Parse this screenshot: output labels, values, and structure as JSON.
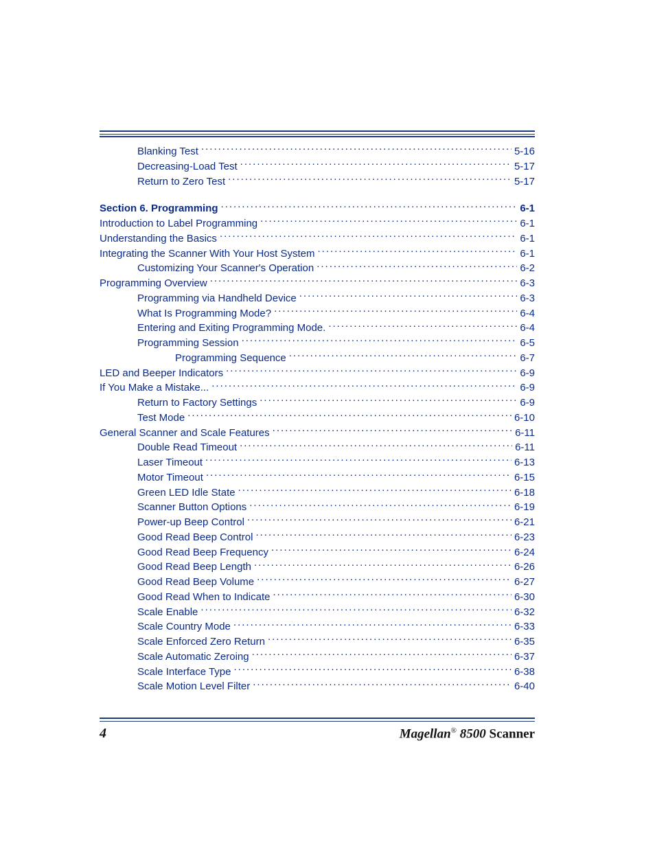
{
  "colors": {
    "link": "#0a2a88",
    "rule": "#1a3a7a",
    "text": "#111111",
    "background": "#ffffff"
  },
  "typography": {
    "body_font": "Arial",
    "body_size_pt": 11,
    "footer_font": "Georgia",
    "footer_size_pt": 14
  },
  "toc": {
    "entries": [
      {
        "label": "Blanking Test",
        "page": "5-16",
        "indent": 1,
        "bold": false
      },
      {
        "label": "Decreasing-Load Test",
        "page": "5-17",
        "indent": 1,
        "bold": false
      },
      {
        "label": "Return to Zero Test",
        "page": "5-17",
        "indent": 1,
        "bold": false
      },
      {
        "gap": true
      },
      {
        "label": "Section 6. Programming",
        "page": "6-1",
        "indent": 0,
        "bold": true
      },
      {
        "label": "Introduction to Label Programming",
        "page": "6-1",
        "indent": 0,
        "bold": false
      },
      {
        "label": "Understanding the Basics",
        "page": "6-1",
        "indent": 0,
        "bold": false
      },
      {
        "label": "Integrating the Scanner With Your Host System",
        "page": "6-1",
        "indent": 0,
        "bold": false
      },
      {
        "label": "Customizing Your Scanner's Operation",
        "page": "6-2",
        "indent": 1,
        "bold": false
      },
      {
        "label": "Programming Overview",
        "page": "6-3",
        "indent": 0,
        "bold": false
      },
      {
        "label": "Programming via Handheld Device",
        "page": "6-3",
        "indent": 1,
        "bold": false
      },
      {
        "label": "What Is Programming Mode?",
        "page": "6-4",
        "indent": 1,
        "bold": false
      },
      {
        "label": "Entering and Exiting Programming Mode.",
        "page": "6-4",
        "indent": 1,
        "bold": false
      },
      {
        "label": "Programming Session",
        "page": "6-5",
        "indent": 1,
        "bold": false
      },
      {
        "label": "Programming Sequence",
        "page": "6-7",
        "indent": 2,
        "bold": false
      },
      {
        "label": "LED and Beeper Indicators",
        "page": "6-9",
        "indent": 0,
        "bold": false
      },
      {
        "label": "If You Make a Mistake...",
        "page": "6-9",
        "indent": 0,
        "bold": false
      },
      {
        "label": "Return to Factory Settings",
        "page": "6-9",
        "indent": 1,
        "bold": false
      },
      {
        "label": "Test Mode",
        "page": "6-10",
        "indent": 1,
        "bold": false
      },
      {
        "label": "General Scanner and Scale Features",
        "page": "6-11",
        "indent": 0,
        "bold": false
      },
      {
        "label": "Double Read Timeout",
        "page": "6-11",
        "indent": 1,
        "bold": false
      },
      {
        "label": "Laser Timeout",
        "page": "6-13",
        "indent": 1,
        "bold": false
      },
      {
        "label": "Motor Timeout",
        "page": "6-15",
        "indent": 1,
        "bold": false
      },
      {
        "label": "Green LED Idle State",
        "page": "6-18",
        "indent": 1,
        "bold": false
      },
      {
        "label": "Scanner Button Options",
        "page": "6-19",
        "indent": 1,
        "bold": false
      },
      {
        "label": "Power-up Beep Control",
        "page": "6-21",
        "indent": 1,
        "bold": false
      },
      {
        "label": "Good Read Beep Control",
        "page": "6-23",
        "indent": 1,
        "bold": false
      },
      {
        "label": "Good Read Beep Frequency",
        "page": "6-24",
        "indent": 1,
        "bold": false
      },
      {
        "label": "Good Read Beep Length",
        "page": "6-26",
        "indent": 1,
        "bold": false
      },
      {
        "label": "Good Read Beep Volume",
        "page": "6-27",
        "indent": 1,
        "bold": false
      },
      {
        "label": "Good Read When to Indicate",
        "page": "6-30",
        "indent": 1,
        "bold": false
      },
      {
        "label": "Scale Enable",
        "page": "6-32",
        "indent": 1,
        "bold": false
      },
      {
        "label": "Scale Country Mode",
        "page": "6-33",
        "indent": 1,
        "bold": false
      },
      {
        "label": "Scale Enforced Zero Return",
        "page": "6-35",
        "indent": 1,
        "bold": false
      },
      {
        "label": "Scale Automatic Zeroing",
        "page": "6-37",
        "indent": 1,
        "bold": false
      },
      {
        "label": "Scale Interface Type",
        "page": "6-38",
        "indent": 1,
        "bold": false
      },
      {
        "label": "Scale Motion Level Filter",
        "page": "6-40",
        "indent": 1,
        "bold": false
      }
    ]
  },
  "footer": {
    "page_number": "4",
    "brand": "Magellan",
    "reg": "®",
    "model": " 8500 ",
    "word": "Scanner"
  }
}
